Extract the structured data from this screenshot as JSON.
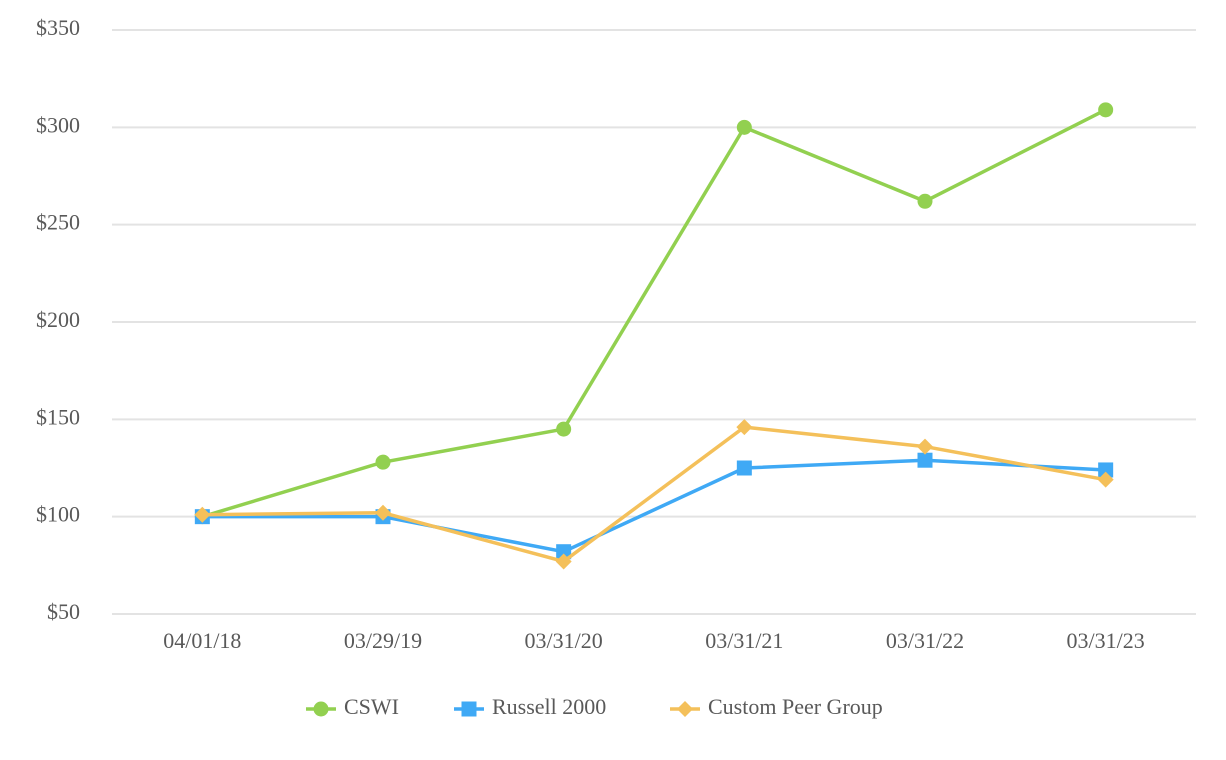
{
  "chart_data": {
    "type": "line",
    "categories": [
      "04/01/18",
      "03/29/19",
      "03/31/20",
      "03/31/21",
      "03/31/22",
      "03/31/23"
    ],
    "series": [
      {
        "name": "CSWI",
        "color": "#92d050",
        "marker": "circle",
        "values": [
          100,
          128,
          145,
          300,
          262,
          309
        ]
      },
      {
        "name": "Russell 2000",
        "color": "#3fa9f5",
        "marker": "square",
        "values": [
          100,
          100,
          82,
          125,
          129,
          124
        ]
      },
      {
        "name": "Custom Peer Group",
        "color": "#f4c05a",
        "marker": "diamond",
        "values": [
          101,
          102,
          77,
          146,
          136,
          119
        ]
      }
    ],
    "ylim": [
      50,
      350
    ],
    "yticks": [
      {
        "value": 50,
        "label": "$50"
      },
      {
        "value": 100,
        "label": "$100"
      },
      {
        "value": 150,
        "label": "$150"
      },
      {
        "value": 200,
        "label": "$200"
      },
      {
        "value": 250,
        "label": "$250"
      },
      {
        "value": 300,
        "label": "$300"
      },
      {
        "value": 350,
        "label": "$350"
      }
    ],
    "grid": true,
    "legend": "bottom"
  }
}
